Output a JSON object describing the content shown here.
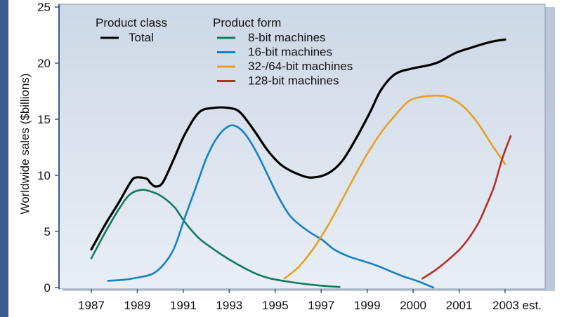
{
  "chart_data": {
    "type": "line",
    "xlabel": "",
    "ylabel": "Worldwide sales ($billions)",
    "ylim": [
      0,
      25
    ],
    "yticks": [
      "0",
      "5",
      "10",
      "15",
      "20",
      "25"
    ],
    "xticks": [
      "1987",
      "1989",
      "1991",
      "1993",
      "1995",
      "1997",
      "1999",
      "2000",
      "2001",
      "2003 est."
    ],
    "grid": false,
    "legend": {
      "placement": "top-left",
      "class_heading": "Product class",
      "form_heading": "Product form"
    },
    "series": [
      {
        "name": "Total",
        "group": "class",
        "color": "#000000",
        "points": [
          [
            0,
            3.4
          ],
          [
            0.5,
            5.6
          ],
          [
            1,
            7.6
          ],
          [
            1.4,
            9.3
          ],
          [
            1.6,
            9.8
          ],
          [
            2.0,
            9.7
          ],
          [
            2.15,
            9.3
          ],
          [
            2.35,
            9.0
          ],
          [
            2.6,
            9.4
          ],
          [
            3.0,
            11.5
          ],
          [
            3.4,
            13.7
          ],
          [
            3.9,
            15.6
          ],
          [
            4.4,
            16.0
          ],
          [
            5.0,
            16.0
          ],
          [
            5.4,
            15.6
          ],
          [
            5.9,
            14.0
          ],
          [
            6.4,
            12.2
          ],
          [
            6.9,
            10.9
          ],
          [
            7.5,
            10.1
          ],
          [
            8.0,
            9.8
          ],
          [
            8.6,
            10.2
          ],
          [
            9.1,
            11.3
          ],
          [
            9.6,
            13.3
          ],
          [
            10.1,
            15.6
          ],
          [
            10.5,
            17.6
          ],
          [
            11.0,
            19.0
          ],
          [
            11.6,
            19.5
          ],
          [
            12.2,
            19.8
          ],
          [
            12.6,
            20.1
          ],
          [
            13.2,
            20.9
          ],
          [
            13.8,
            21.4
          ],
          [
            14.5,
            21.9
          ],
          [
            15.0,
            22.1
          ]
        ]
      },
      {
        "name": "8-bit machines",
        "group": "form",
        "color": "#137a5c",
        "points": [
          [
            0,
            2.6
          ],
          [
            0.5,
            4.9
          ],
          [
            1,
            7.0
          ],
          [
            1.4,
            8.3
          ],
          [
            1.8,
            8.7
          ],
          [
            2.1,
            8.6
          ],
          [
            2.5,
            8.2
          ],
          [
            3.0,
            7.2
          ],
          [
            3.4,
            5.8
          ],
          [
            3.9,
            4.4
          ],
          [
            4.5,
            3.3
          ],
          [
            5.0,
            2.5
          ],
          [
            5.5,
            1.8
          ],
          [
            6.0,
            1.2
          ],
          [
            6.5,
            0.8
          ],
          [
            7.2,
            0.5
          ],
          [
            7.8,
            0.3
          ],
          [
            8.4,
            0.15
          ],
          [
            9.0,
            0.05
          ]
        ]
      },
      {
        "name": "16-bit machines",
        "group": "form",
        "color": "#1481c4",
        "points": [
          [
            0.6,
            0.6
          ],
          [
            1.2,
            0.7
          ],
          [
            1.7,
            0.9
          ],
          [
            2.2,
            1.2
          ],
          [
            2.6,
            2.0
          ],
          [
            3.0,
            3.5
          ],
          [
            3.4,
            6.3
          ],
          [
            3.8,
            9.0
          ],
          [
            4.2,
            11.7
          ],
          [
            4.6,
            13.5
          ],
          [
            5.0,
            14.4
          ],
          [
            5.3,
            14.3
          ],
          [
            5.6,
            13.6
          ],
          [
            6.0,
            12.0
          ],
          [
            6.4,
            10.0
          ],
          [
            6.8,
            8.0
          ],
          [
            7.2,
            6.4
          ],
          [
            7.6,
            5.5
          ],
          [
            8.0,
            4.8
          ],
          [
            8.4,
            4.2
          ],
          [
            8.8,
            3.4
          ],
          [
            9.3,
            2.8
          ],
          [
            9.8,
            2.4
          ],
          [
            10.3,
            2.0
          ],
          [
            10.8,
            1.5
          ],
          [
            11.3,
            1.0
          ],
          [
            11.8,
            0.6
          ],
          [
            12.2,
            0.2
          ],
          [
            12.4,
            0.0
          ]
        ]
      },
      {
        "name": "32-/64-bit machines",
        "group": "form",
        "color": "#e8a021",
        "points": [
          [
            7.0,
            0.8
          ],
          [
            7.5,
            1.8
          ],
          [
            8.0,
            3.3
          ],
          [
            8.5,
            5.2
          ],
          [
            9.0,
            7.4
          ],
          [
            9.5,
            9.7
          ],
          [
            10.0,
            11.9
          ],
          [
            10.5,
            13.8
          ],
          [
            11.0,
            15.3
          ],
          [
            11.5,
            16.6
          ],
          [
            12.0,
            17.0
          ],
          [
            12.6,
            17.1
          ],
          [
            13.0,
            16.9
          ],
          [
            13.5,
            16.1
          ],
          [
            14.0,
            14.7
          ],
          [
            14.5,
            12.8
          ],
          [
            15.0,
            11.0
          ]
        ]
      },
      {
        "name": "128-bit machines",
        "group": "form",
        "color": "#b1302c",
        "points": [
          [
            12.0,
            0.8
          ],
          [
            12.5,
            1.6
          ],
          [
            13.0,
            2.6
          ],
          [
            13.5,
            3.8
          ],
          [
            14.0,
            5.6
          ],
          [
            14.3,
            7.2
          ],
          [
            14.6,
            9.0
          ],
          [
            14.9,
            11.5
          ],
          [
            15.2,
            13.5
          ]
        ]
      }
    ]
  }
}
